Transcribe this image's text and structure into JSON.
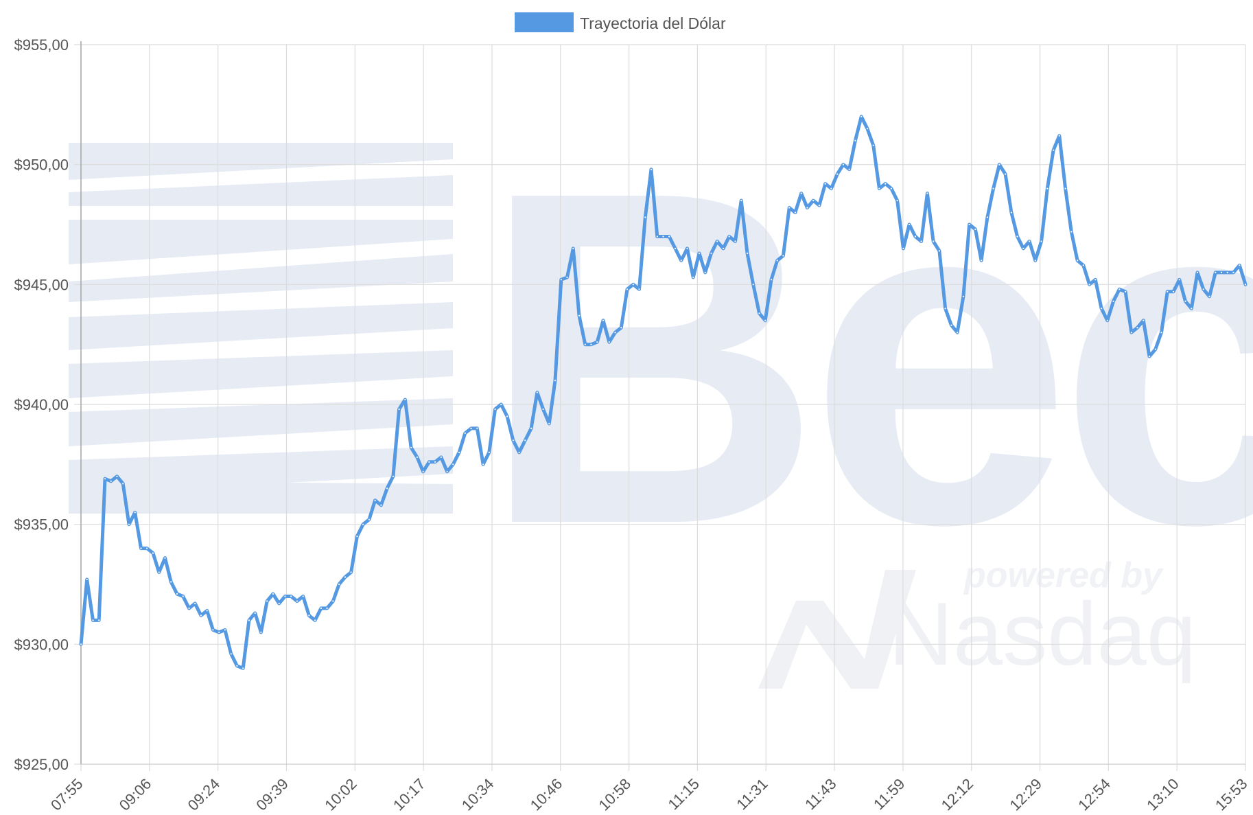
{
  "chart_data": {
    "type": "line",
    "legend": {
      "label": "Trayectoria del Dólar",
      "color": "#5499e2",
      "placement": "top-center"
    },
    "watermark": {
      "logo_text": "Bec",
      "powered_by": "powered by",
      "brand": "Nasdaq"
    },
    "ylim": [
      925,
      955
    ],
    "y_ticks": [
      {
        "value": 925,
        "label": "$925,00"
      },
      {
        "value": 930,
        "label": "$930,00"
      },
      {
        "value": 935,
        "label": "$935,00"
      },
      {
        "value": 940,
        "label": "$940,00"
      },
      {
        "value": 945,
        "label": "$945,00"
      },
      {
        "value": 950,
        "label": "$950,00"
      },
      {
        "value": 955,
        "label": "$955,00"
      }
    ],
    "x_tick_labels": [
      "07:55",
      "09:06",
      "09:24",
      "09:39",
      "10:02",
      "10:17",
      "10:34",
      "10:46",
      "10:58",
      "11:15",
      "11:31",
      "11:43",
      "11:59",
      "12:12",
      "12:29",
      "12:54",
      "13:10",
      "15:53"
    ],
    "grid": true,
    "series": [
      {
        "name": "Trayectoria del Dólar",
        "color": "#5499e2",
        "values": [
          930.0,
          932.7,
          931.0,
          931.0,
          936.9,
          936.8,
          937.0,
          936.7,
          935.0,
          935.5,
          934.0,
          934.0,
          933.8,
          933.0,
          933.6,
          932.6,
          932.1,
          932.0,
          931.5,
          931.7,
          931.2,
          931.4,
          930.6,
          930.5,
          930.6,
          929.6,
          929.1,
          929.0,
          931.0,
          931.3,
          930.5,
          931.8,
          932.1,
          931.7,
          932.0,
          932.0,
          931.8,
          932.0,
          931.2,
          931.0,
          931.5,
          931.5,
          931.8,
          932.5,
          932.8,
          933.0,
          934.5,
          935.0,
          935.2,
          936.0,
          935.8,
          936.5,
          937.0,
          939.8,
          940.2,
          938.2,
          937.8,
          937.2,
          937.6,
          937.6,
          937.8,
          937.2,
          937.5,
          938.0,
          938.8,
          939.0,
          939.0,
          937.5,
          938.0,
          939.8,
          940.0,
          939.5,
          938.5,
          938.0,
          938.5,
          939.0,
          940.5,
          939.8,
          939.2,
          941.0,
          945.2,
          945.3,
          946.5,
          943.7,
          942.5,
          942.5,
          942.6,
          943.5,
          942.6,
          943.0,
          943.2,
          944.8,
          945.0,
          944.8,
          947.8,
          949.8,
          947.0,
          947.0,
          947.0,
          946.5,
          946.0,
          946.5,
          945.3,
          946.3,
          945.5,
          946.3,
          946.8,
          946.5,
          947.0,
          946.8,
          948.5,
          946.3,
          945.0,
          943.8,
          943.5,
          945.2,
          946.0,
          946.2,
          948.2,
          948.0,
          948.8,
          948.2,
          948.5,
          948.3,
          949.2,
          949.0,
          949.6,
          950.0,
          949.8,
          951.0,
          952.0,
          951.5,
          950.8,
          949.0,
          949.2,
          949.0,
          948.5,
          946.5,
          947.5,
          947.0,
          946.8,
          948.8,
          946.8,
          946.4,
          944.0,
          943.3,
          943.0,
          944.5,
          947.5,
          947.3,
          946.0,
          947.8,
          949.0,
          950.0,
          949.6,
          948.0,
          947.0,
          946.5,
          946.8,
          946.0,
          946.8,
          949.0,
          950.6,
          951.2,
          949.0,
          947.2,
          946.0,
          945.8,
          945.0,
          945.2,
          944.0,
          943.5,
          944.3,
          944.8,
          944.7,
          943.0,
          943.2,
          943.5,
          942.0,
          942.3,
          943.0,
          944.7,
          944.7,
          945.2,
          944.3,
          944.0,
          945.5,
          944.8,
          944.5,
          945.5,
          945.5,
          945.5,
          945.5,
          945.8,
          945.0
        ]
      }
    ]
  }
}
